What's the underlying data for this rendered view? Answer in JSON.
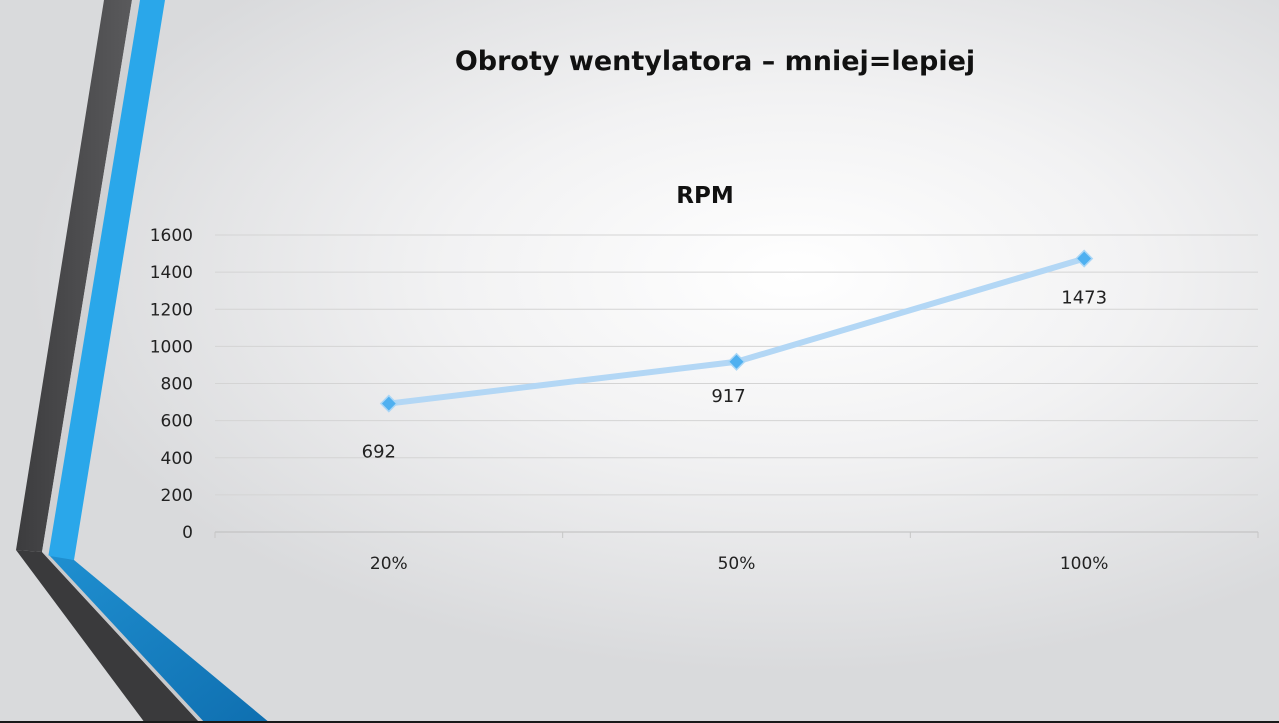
{
  "slide": {
    "title": "Obroty wentylatora – mniej=lepiej"
  },
  "colors": {
    "accent_blue": "#2aa7ea",
    "dark_stripe": "#4a4a4c",
    "line": "#b3d7f5",
    "marker": "#4fb0f0"
  },
  "chart_data": {
    "type": "line",
    "title": "RPM",
    "categories": [
      "20%",
      "50%",
      "100%"
    ],
    "series": [
      {
        "values": [
          692,
          917,
          1473
        ]
      }
    ],
    "data_labels": [
      "692",
      "917",
      "1473"
    ],
    "y_ticks": [
      "0",
      "200",
      "400",
      "600",
      "800",
      "1000",
      "1200",
      "1400",
      "1600"
    ],
    "ylim": [
      0,
      1600
    ],
    "grid": true,
    "legend": "none",
    "marker": "diamond"
  }
}
